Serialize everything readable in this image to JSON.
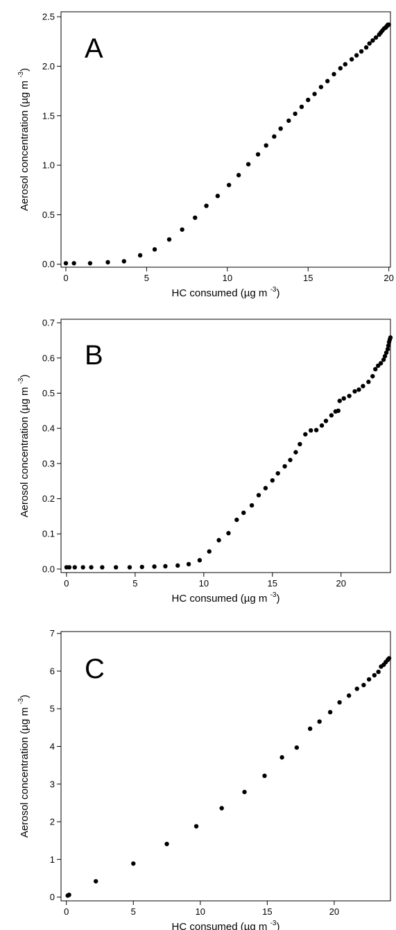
{
  "chart_data": [
    {
      "type": "scatter",
      "panel_label": "A",
      "xlabel": "HC consumed",
      "xunit_base": "(µg m",
      "xunit_exp": "-3",
      "xunit_close": ")",
      "ylabel": "Aerosol concentration",
      "yunit_base": "(µg m",
      "yunit_exp": "-3",
      "yunit_close": ")",
      "xlim": [
        -0.3,
        20.1
      ],
      "ylim": [
        -0.03,
        2.55
      ],
      "xticks": [
        0,
        5,
        10,
        15,
        20
      ],
      "xtick_labels": [
        "0",
        "5",
        "10",
        "15",
        "20"
      ],
      "yticks": [
        0.0,
        0.5,
        1.0,
        1.5,
        2.0,
        2.5
      ],
      "ytick_labels": [
        "0.0",
        "0.5",
        "1.0",
        "1.5",
        "2.0",
        "2.5"
      ],
      "marker_color": "#000000",
      "points": [
        [
          0.0,
          0.01
        ],
        [
          0.5,
          0.01
        ],
        [
          1.5,
          0.01
        ],
        [
          2.6,
          0.02
        ],
        [
          3.6,
          0.03
        ],
        [
          4.6,
          0.09
        ],
        [
          5.5,
          0.15
        ],
        [
          6.4,
          0.25
        ],
        [
          7.2,
          0.35
        ],
        [
          8.0,
          0.47
        ],
        [
          8.7,
          0.59
        ],
        [
          9.4,
          0.69
        ],
        [
          10.1,
          0.8
        ],
        [
          10.7,
          0.9
        ],
        [
          11.3,
          1.01
        ],
        [
          11.9,
          1.11
        ],
        [
          12.4,
          1.2
        ],
        [
          12.9,
          1.29
        ],
        [
          13.3,
          1.37
        ],
        [
          13.8,
          1.45
        ],
        [
          14.2,
          1.52
        ],
        [
          14.6,
          1.59
        ],
        [
          15.0,
          1.66
        ],
        [
          15.4,
          1.72
        ],
        [
          15.8,
          1.79
        ],
        [
          16.2,
          1.85
        ],
        [
          16.6,
          1.92
        ],
        [
          17.0,
          1.98
        ],
        [
          17.3,
          2.02
        ],
        [
          17.7,
          2.07
        ],
        [
          18.0,
          2.11
        ],
        [
          18.3,
          2.15
        ],
        [
          18.6,
          2.19
        ],
        [
          18.8,
          2.23
        ],
        [
          19.0,
          2.26
        ],
        [
          19.2,
          2.29
        ],
        [
          19.4,
          2.32
        ],
        [
          19.5,
          2.34
        ],
        [
          19.6,
          2.36
        ],
        [
          19.7,
          2.38
        ],
        [
          19.8,
          2.39
        ],
        [
          19.85,
          2.4
        ],
        [
          19.9,
          2.41
        ],
        [
          19.95,
          2.42
        ],
        [
          20.0,
          2.42
        ]
      ]
    },
    {
      "type": "scatter",
      "panel_label": "B",
      "xlabel": "HC consumed",
      "xunit_base": "(µg m",
      "xunit_exp": "-3",
      "xunit_close": ")",
      "ylabel": "Aerosol concentration",
      "yunit_base": "(µg m",
      "yunit_exp": "-3",
      "yunit_close": ")",
      "xlim": [
        -0.4,
        23.6
      ],
      "ylim": [
        -0.01,
        0.71
      ],
      "xticks": [
        0,
        5,
        10,
        15,
        20
      ],
      "xtick_labels": [
        "0",
        "5",
        "10",
        "15",
        "20"
      ],
      "yticks": [
        0.0,
        0.1,
        0.2,
        0.3,
        0.4,
        0.5,
        0.6,
        0.7
      ],
      "ytick_labels": [
        "0.0",
        "0.1",
        "0.2",
        "0.3",
        "0.4",
        "0.5",
        "0.6",
        "0.7"
      ],
      "marker_color": "#000000",
      "points": [
        [
          0.0,
          0.005
        ],
        [
          0.2,
          0.005
        ],
        [
          0.6,
          0.005
        ],
        [
          1.2,
          0.005
        ],
        [
          1.8,
          0.005
        ],
        [
          2.6,
          0.005
        ],
        [
          3.6,
          0.005
        ],
        [
          4.6,
          0.005
        ],
        [
          5.5,
          0.006
        ],
        [
          6.4,
          0.007
        ],
        [
          7.2,
          0.008
        ],
        [
          8.1,
          0.01
        ],
        [
          8.9,
          0.014
        ],
        [
          9.7,
          0.025
        ],
        [
          10.4,
          0.05
        ],
        [
          11.1,
          0.082
        ],
        [
          11.8,
          0.102
        ],
        [
          12.4,
          0.14
        ],
        [
          12.9,
          0.16
        ],
        [
          13.5,
          0.181
        ],
        [
          14.0,
          0.21
        ],
        [
          14.5,
          0.23
        ],
        [
          15.0,
          0.252
        ],
        [
          15.4,
          0.272
        ],
        [
          15.9,
          0.292
        ],
        [
          16.3,
          0.31
        ],
        [
          16.7,
          0.332
        ],
        [
          17.0,
          0.355
        ],
        [
          17.4,
          0.383
        ],
        [
          17.8,
          0.394
        ],
        [
          18.2,
          0.395
        ],
        [
          18.6,
          0.408
        ],
        [
          18.9,
          0.421
        ],
        [
          19.3,
          0.437
        ],
        [
          19.6,
          0.448
        ],
        [
          19.8,
          0.45
        ],
        [
          19.9,
          0.478
        ],
        [
          20.2,
          0.485
        ],
        [
          20.6,
          0.492
        ],
        [
          21.0,
          0.505
        ],
        [
          21.3,
          0.51
        ],
        [
          21.6,
          0.52
        ],
        [
          22.0,
          0.532
        ],
        [
          22.3,
          0.548
        ],
        [
          22.5,
          0.568
        ],
        [
          22.7,
          0.578
        ],
        [
          22.9,
          0.585
        ],
        [
          23.1,
          0.595
        ],
        [
          23.2,
          0.605
        ],
        [
          23.3,
          0.615
        ],
        [
          23.4,
          0.625
        ],
        [
          23.45,
          0.635
        ],
        [
          23.5,
          0.645
        ],
        [
          23.55,
          0.652
        ],
        [
          23.6,
          0.658
        ]
      ]
    },
    {
      "type": "scatter",
      "panel_label": "C",
      "xlabel": "HC consumed",
      "xunit_base": "(µg m",
      "xunit_exp": "-3",
      "xunit_close": ")",
      "ylabel": "Aerosol concentration",
      "yunit_base": "(µg m",
      "yunit_exp": "-3",
      "yunit_close": ")",
      "xlim": [
        -0.4,
        24.2
      ],
      "ylim": [
        -0.1,
        7.05
      ],
      "xticks": [
        0,
        5,
        10,
        15,
        20
      ],
      "xtick_labels": [
        "0",
        "5",
        "10",
        "15",
        "20"
      ],
      "yticks": [
        0,
        1,
        2,
        3,
        4,
        5,
        6,
        7
      ],
      "ytick_labels": [
        "0",
        "1",
        "2",
        "3",
        "4",
        "5",
        "6",
        "7"
      ],
      "marker_color": "#000000",
      "points": [
        [
          0.1,
          0.04
        ],
        [
          0.2,
          0.06
        ],
        [
          2.2,
          0.42
        ],
        [
          5.0,
          0.89
        ],
        [
          7.5,
          1.41
        ],
        [
          9.7,
          1.88
        ],
        [
          11.6,
          2.36
        ],
        [
          13.3,
          2.79
        ],
        [
          14.8,
          3.22
        ],
        [
          16.1,
          3.71
        ],
        [
          17.2,
          3.97
        ],
        [
          18.2,
          4.47
        ],
        [
          18.9,
          4.66
        ],
        [
          19.7,
          4.91
        ],
        [
          20.4,
          5.17
        ],
        [
          21.1,
          5.35
        ],
        [
          21.7,
          5.53
        ],
        [
          22.2,
          5.63
        ],
        [
          22.6,
          5.78
        ],
        [
          23.0,
          5.89
        ],
        [
          23.3,
          5.98
        ],
        [
          23.5,
          6.12
        ],
        [
          23.7,
          6.17
        ],
        [
          23.85,
          6.24
        ],
        [
          24.0,
          6.3
        ],
        [
          24.1,
          6.34
        ]
      ]
    }
  ]
}
